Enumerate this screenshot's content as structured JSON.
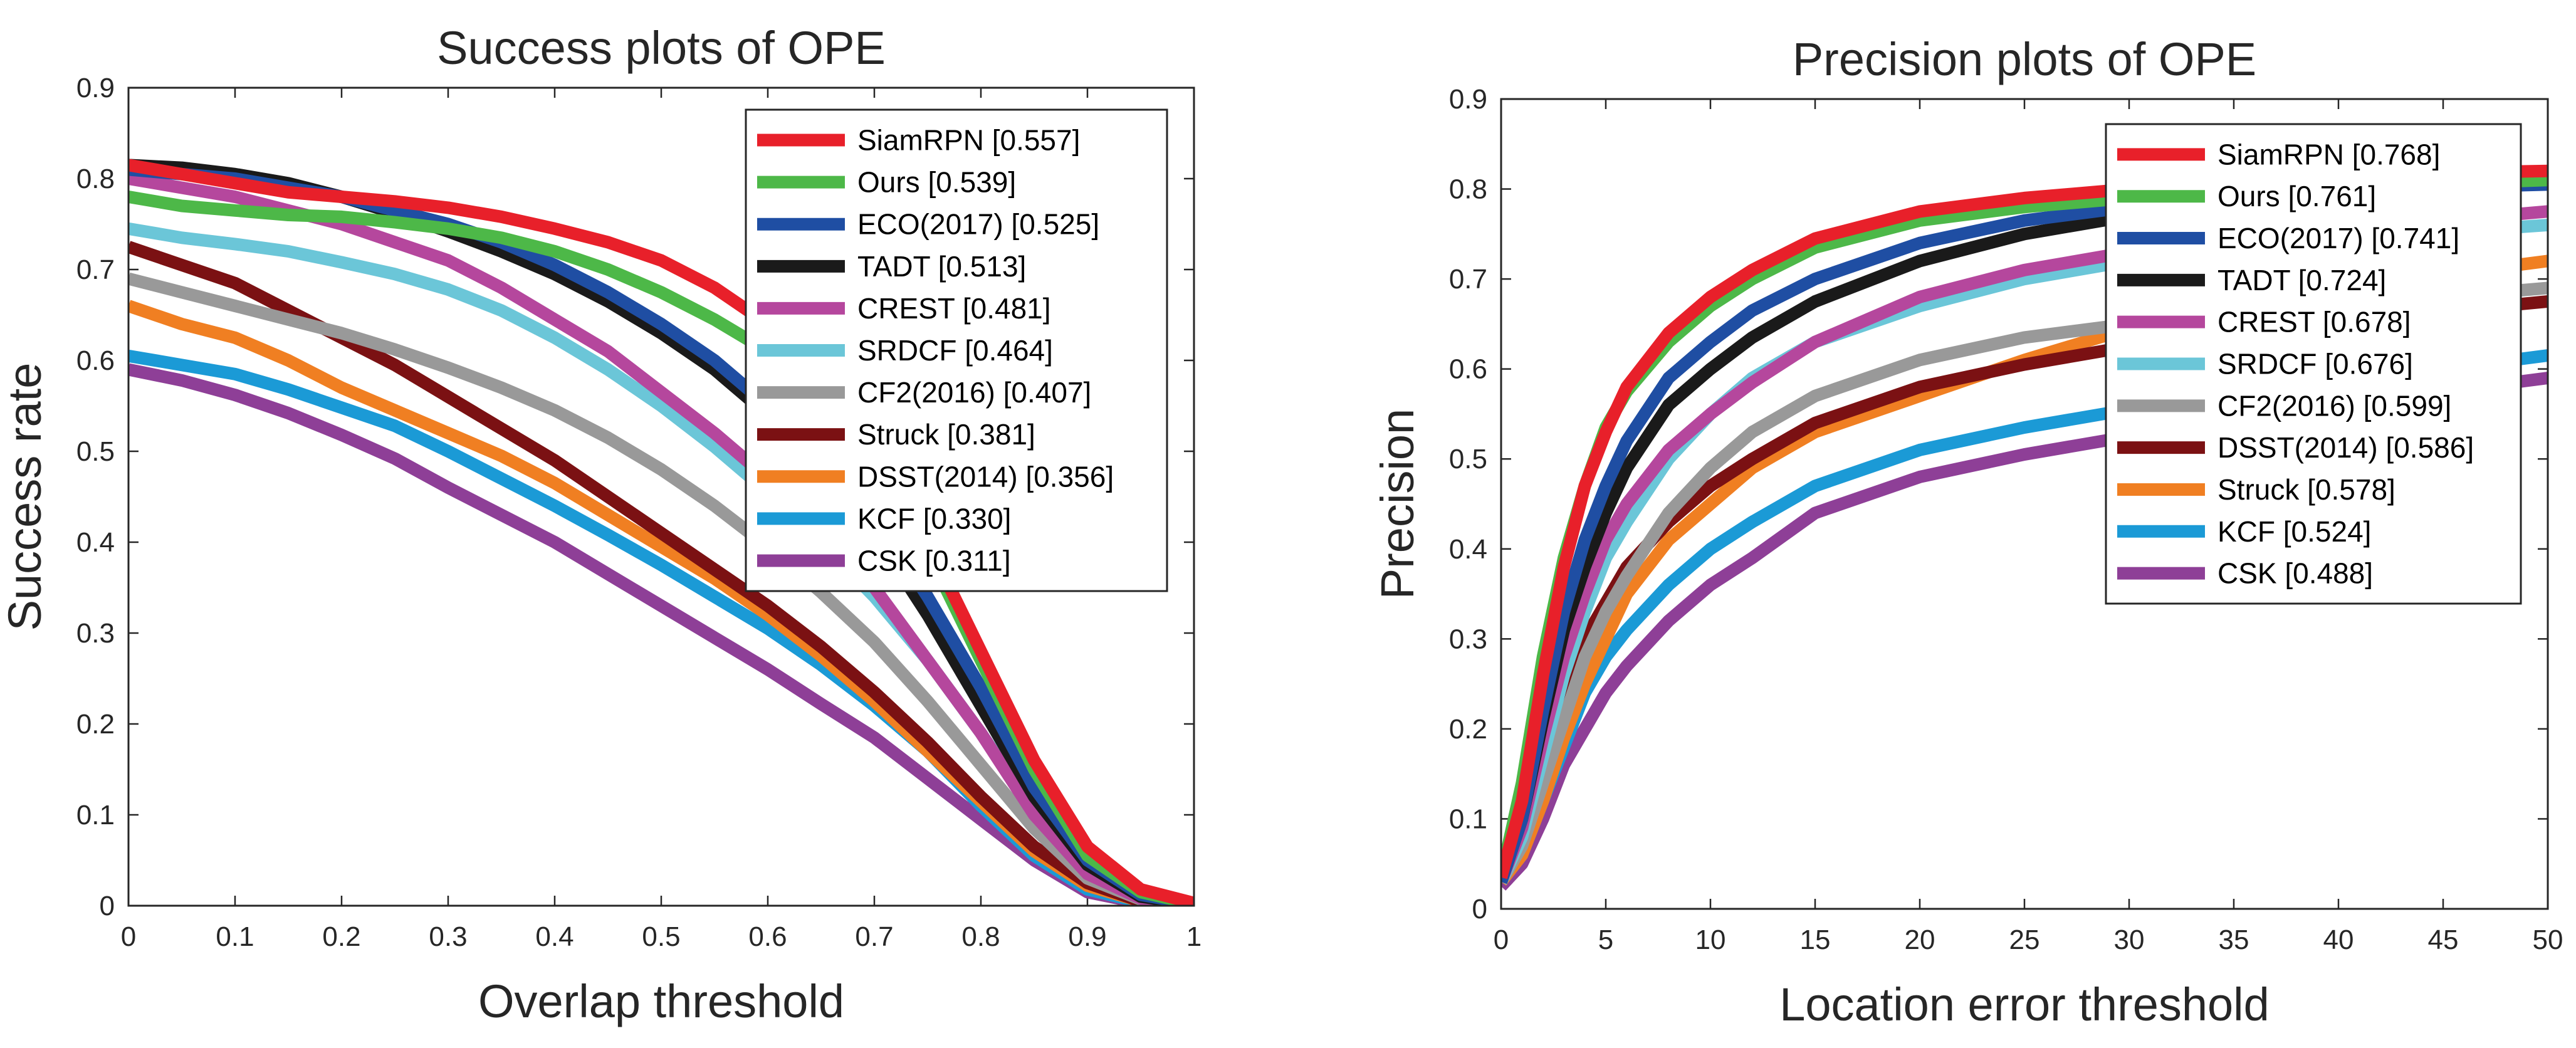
{
  "chart_data": [
    {
      "id": "success",
      "type": "line",
      "title": "Success plots of OPE",
      "xlabel": "Overlap threshold",
      "ylabel": "Success rate",
      "xlim": [
        0,
        1
      ],
      "ylim": [
        0,
        0.9
      ],
      "xticks": [
        0,
        0.1,
        0.2,
        0.3,
        0.4,
        0.5,
        0.6,
        0.7,
        0.8,
        0.9,
        1
      ],
      "yticks": [
        0,
        0.1,
        0.2,
        0.3,
        0.4,
        0.5,
        0.6,
        0.7,
        0.8,
        0.9
      ],
      "legend_position": "top-right",
      "x": [
        0,
        0.05,
        0.1,
        0.15,
        0.2,
        0.25,
        0.3,
        0.35,
        0.4,
        0.45,
        0.5,
        0.55,
        0.6,
        0.65,
        0.7,
        0.75,
        0.8,
        0.85,
        0.9,
        0.95,
        1
      ],
      "series": [
        {
          "name": "SiamRPN [0.557]",
          "color": "#e8202a",
          "values": [
            0.815,
            0.805,
            0.795,
            0.785,
            0.78,
            0.775,
            0.768,
            0.758,
            0.745,
            0.73,
            0.71,
            0.68,
            0.64,
            0.58,
            0.5,
            0.4,
            0.28,
            0.16,
            0.065,
            0.018,
            0.003
          ]
        },
        {
          "name": "Ours [0.539]",
          "color": "#4db848",
          "values": [
            0.78,
            0.77,
            0.765,
            0.76,
            0.758,
            0.752,
            0.745,
            0.735,
            0.72,
            0.7,
            0.675,
            0.645,
            0.61,
            0.56,
            0.49,
            0.39,
            0.27,
            0.15,
            0.055,
            0.015,
            0.002
          ]
        },
        {
          "name": "ECO(2017) [0.525]",
          "color": "#1f4ea3",
          "values": [
            0.81,
            0.805,
            0.8,
            0.79,
            0.78,
            0.765,
            0.75,
            0.73,
            0.705,
            0.675,
            0.64,
            0.6,
            0.55,
            0.5,
            0.43,
            0.34,
            0.24,
            0.13,
            0.05,
            0.012,
            0.002
          ]
        },
        {
          "name": "TADT [0.513]",
          "color": "#1a1a1a",
          "values": [
            0.815,
            0.812,
            0.805,
            0.795,
            0.78,
            0.762,
            0.742,
            0.72,
            0.695,
            0.665,
            0.63,
            0.59,
            0.54,
            0.48,
            0.41,
            0.32,
            0.22,
            0.12,
            0.045,
            0.01,
            0.002
          ]
        },
        {
          "name": "CREST [0.481]",
          "color": "#b5479d",
          "values": [
            0.8,
            0.79,
            0.78,
            0.765,
            0.75,
            0.73,
            0.71,
            0.68,
            0.645,
            0.61,
            0.565,
            0.52,
            0.47,
            0.41,
            0.35,
            0.27,
            0.19,
            0.1,
            0.035,
            0.008,
            0.001
          ]
        },
        {
          "name": "SRDCF [0.464]",
          "color": "#6bc6d8",
          "values": [
            0.745,
            0.735,
            0.728,
            0.72,
            0.708,
            0.695,
            0.678,
            0.655,
            0.625,
            0.59,
            0.55,
            0.505,
            0.455,
            0.4,
            0.34,
            0.27,
            0.19,
            0.105,
            0.04,
            0.01,
            0.001
          ]
        },
        {
          "name": "CF2(2016) [0.407]",
          "color": "#999999",
          "values": [
            0.69,
            0.675,
            0.66,
            0.645,
            0.63,
            0.612,
            0.592,
            0.57,
            0.545,
            0.515,
            0.48,
            0.44,
            0.395,
            0.345,
            0.29,
            0.225,
            0.155,
            0.085,
            0.03,
            0.007,
            0.001
          ]
        },
        {
          "name": "Struck [0.381]",
          "color": "#7b1113",
          "values": [
            0.725,
            0.705,
            0.685,
            0.655,
            0.625,
            0.595,
            0.56,
            0.525,
            0.49,
            0.45,
            0.41,
            0.37,
            0.33,
            0.285,
            0.235,
            0.18,
            0.12,
            0.065,
            0.025,
            0.005,
            0.001
          ]
        },
        {
          "name": "DSST(2014) [0.356]",
          "color": "#f07f22",
          "values": [
            0.66,
            0.64,
            0.625,
            0.6,
            0.57,
            0.545,
            0.52,
            0.495,
            0.465,
            0.43,
            0.395,
            0.36,
            0.32,
            0.275,
            0.225,
            0.17,
            0.115,
            0.06,
            0.022,
            0.005,
            0.001
          ]
        },
        {
          "name": "KCF [0.330]",
          "color": "#1b9ad6",
          "values": [
            0.605,
            0.595,
            0.585,
            0.568,
            0.548,
            0.528,
            0.5,
            0.47,
            0.44,
            0.408,
            0.375,
            0.34,
            0.305,
            0.265,
            0.22,
            0.17,
            0.11,
            0.055,
            0.018,
            0.004,
            0.001
          ]
        },
        {
          "name": "CSK [0.311]",
          "color": "#8e3f97",
          "values": [
            0.59,
            0.578,
            0.562,
            0.542,
            0.518,
            0.492,
            0.46,
            0.43,
            0.4,
            0.365,
            0.33,
            0.295,
            0.26,
            0.222,
            0.185,
            0.14,
            0.095,
            0.05,
            0.015,
            0.003,
            0.001
          ]
        }
      ]
    },
    {
      "id": "precision",
      "type": "line",
      "title": "Precision plots of OPE",
      "xlabel": "Location error threshold",
      "ylabel": "Precision",
      "xlim": [
        0,
        50
      ],
      "ylim": [
        0,
        0.9
      ],
      "xticks": [
        0,
        5,
        10,
        15,
        20,
        25,
        30,
        35,
        40,
        45,
        50
      ],
      "yticks": [
        0,
        0.1,
        0.2,
        0.3,
        0.4,
        0.5,
        0.6,
        0.7,
        0.8,
        0.9
      ],
      "legend_position": "top-right",
      "x": [
        0,
        1,
        2,
        3,
        4,
        5,
        6,
        8,
        10,
        12,
        15,
        20,
        25,
        30,
        35,
        40,
        45,
        50
      ],
      "series": [
        {
          "name": "SiamRPN [0.768]",
          "color": "#e8202a",
          "values": [
            0.035,
            0.12,
            0.26,
            0.38,
            0.47,
            0.53,
            0.58,
            0.64,
            0.68,
            0.71,
            0.745,
            0.775,
            0.79,
            0.8,
            0.808,
            0.814,
            0.818,
            0.82
          ]
        },
        {
          "name": "Ours [0.761]",
          "color": "#4db848",
          "values": [
            0.035,
            0.14,
            0.28,
            0.39,
            0.47,
            0.535,
            0.575,
            0.63,
            0.67,
            0.7,
            0.735,
            0.765,
            0.78,
            0.79,
            0.797,
            0.802,
            0.806,
            0.81
          ]
        },
        {
          "name": "ECO(2017) [0.741]",
          "color": "#1f4ea3",
          "values": [
            0.03,
            0.1,
            0.22,
            0.33,
            0.41,
            0.47,
            0.52,
            0.59,
            0.63,
            0.665,
            0.7,
            0.74,
            0.765,
            0.78,
            0.79,
            0.797,
            0.802,
            0.805
          ]
        },
        {
          "name": "TADT [0.724]",
          "color": "#1a1a1a",
          "values": [
            0.03,
            0.1,
            0.21,
            0.31,
            0.38,
            0.44,
            0.49,
            0.56,
            0.6,
            0.635,
            0.675,
            0.72,
            0.75,
            0.77,
            0.785,
            0.795,
            0.805,
            0.815
          ]
        },
        {
          "name": "CREST [0.678]",
          "color": "#b5479d",
          "values": [
            0.03,
            0.09,
            0.19,
            0.28,
            0.35,
            0.41,
            0.45,
            0.51,
            0.55,
            0.585,
            0.63,
            0.68,
            0.71,
            0.73,
            0.745,
            0.755,
            0.765,
            0.775
          ]
        },
        {
          "name": "SRDCF [0.676]",
          "color": "#6bc6d8",
          "values": [
            0.03,
            0.08,
            0.17,
            0.26,
            0.33,
            0.39,
            0.43,
            0.5,
            0.55,
            0.59,
            0.63,
            0.67,
            0.7,
            0.72,
            0.735,
            0.745,
            0.752,
            0.76
          ]
        },
        {
          "name": "CF2(2016) [0.599]",
          "color": "#999999",
          "values": [
            0.03,
            0.07,
            0.14,
            0.21,
            0.28,
            0.33,
            0.37,
            0.44,
            0.49,
            0.53,
            0.57,
            0.61,
            0.635,
            0.65,
            0.66,
            0.67,
            0.68,
            0.69
          ]
        },
        {
          "name": "DSST(2014) [0.586]",
          "color": "#7b1113",
          "values": [
            0.03,
            0.08,
            0.16,
            0.24,
            0.3,
            0.34,
            0.38,
            0.43,
            0.47,
            0.5,
            0.54,
            0.58,
            0.605,
            0.625,
            0.64,
            0.652,
            0.664,
            0.675
          ]
        },
        {
          "name": "Struck [0.578]",
          "color": "#f07f22",
          "values": [
            0.03,
            0.06,
            0.12,
            0.19,
            0.25,
            0.3,
            0.35,
            0.41,
            0.45,
            0.49,
            0.53,
            0.57,
            0.61,
            0.645,
            0.67,
            0.69,
            0.705,
            0.72
          ]
        },
        {
          "name": "KCF [0.524]",
          "color": "#1b9ad6",
          "values": [
            0.03,
            0.06,
            0.12,
            0.18,
            0.24,
            0.28,
            0.31,
            0.36,
            0.4,
            0.43,
            0.47,
            0.51,
            0.535,
            0.555,
            0.57,
            0.585,
            0.6,
            0.615
          ]
        },
        {
          "name": "CSK [0.488]",
          "color": "#8e3f97",
          "values": [
            0.025,
            0.05,
            0.1,
            0.16,
            0.2,
            0.24,
            0.27,
            0.32,
            0.36,
            0.39,
            0.44,
            0.48,
            0.505,
            0.525,
            0.545,
            0.56,
            0.575,
            0.59
          ]
        }
      ]
    }
  ]
}
